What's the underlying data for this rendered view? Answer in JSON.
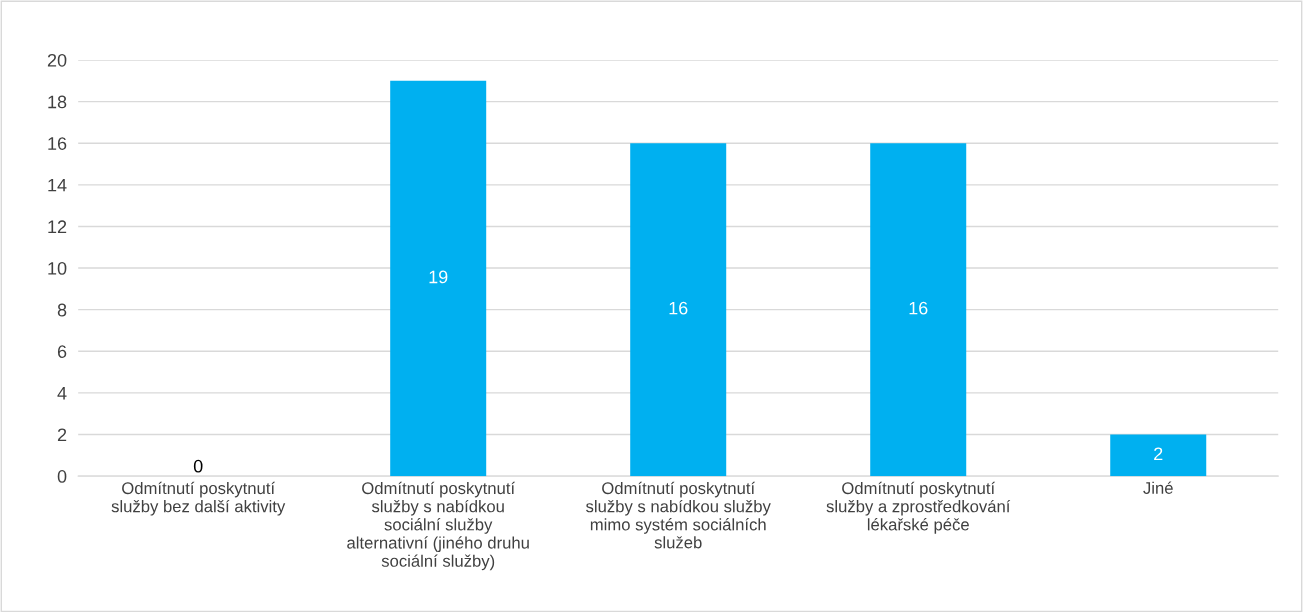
{
  "chart_data": {
    "type": "bar",
    "categories": [
      "Odmítnutí poskytnutí\nslužby bez další aktivity",
      "Odmítnutí poskytnutí\nslužby s nabídkou\nsociální služby\nalternativní (jiného druhu\nsociální služby)",
      "Odmítnutí poskytnutí\nslužby s nabídkou služby\nmimo systém sociálních\nslužeb",
      "Odmítnutí poskytnutí\nslužby a zprostředkování\nlékařské péče",
      "Jiné"
    ],
    "values": [
      0,
      19,
      16,
      16,
      2
    ],
    "color": "#00b0f0",
    "ylim": [
      0,
      20
    ],
    "yticks": [
      0,
      2,
      4,
      6,
      8,
      10,
      12,
      14,
      16,
      18,
      20
    ],
    "grid": "y",
    "data_labels": true
  }
}
